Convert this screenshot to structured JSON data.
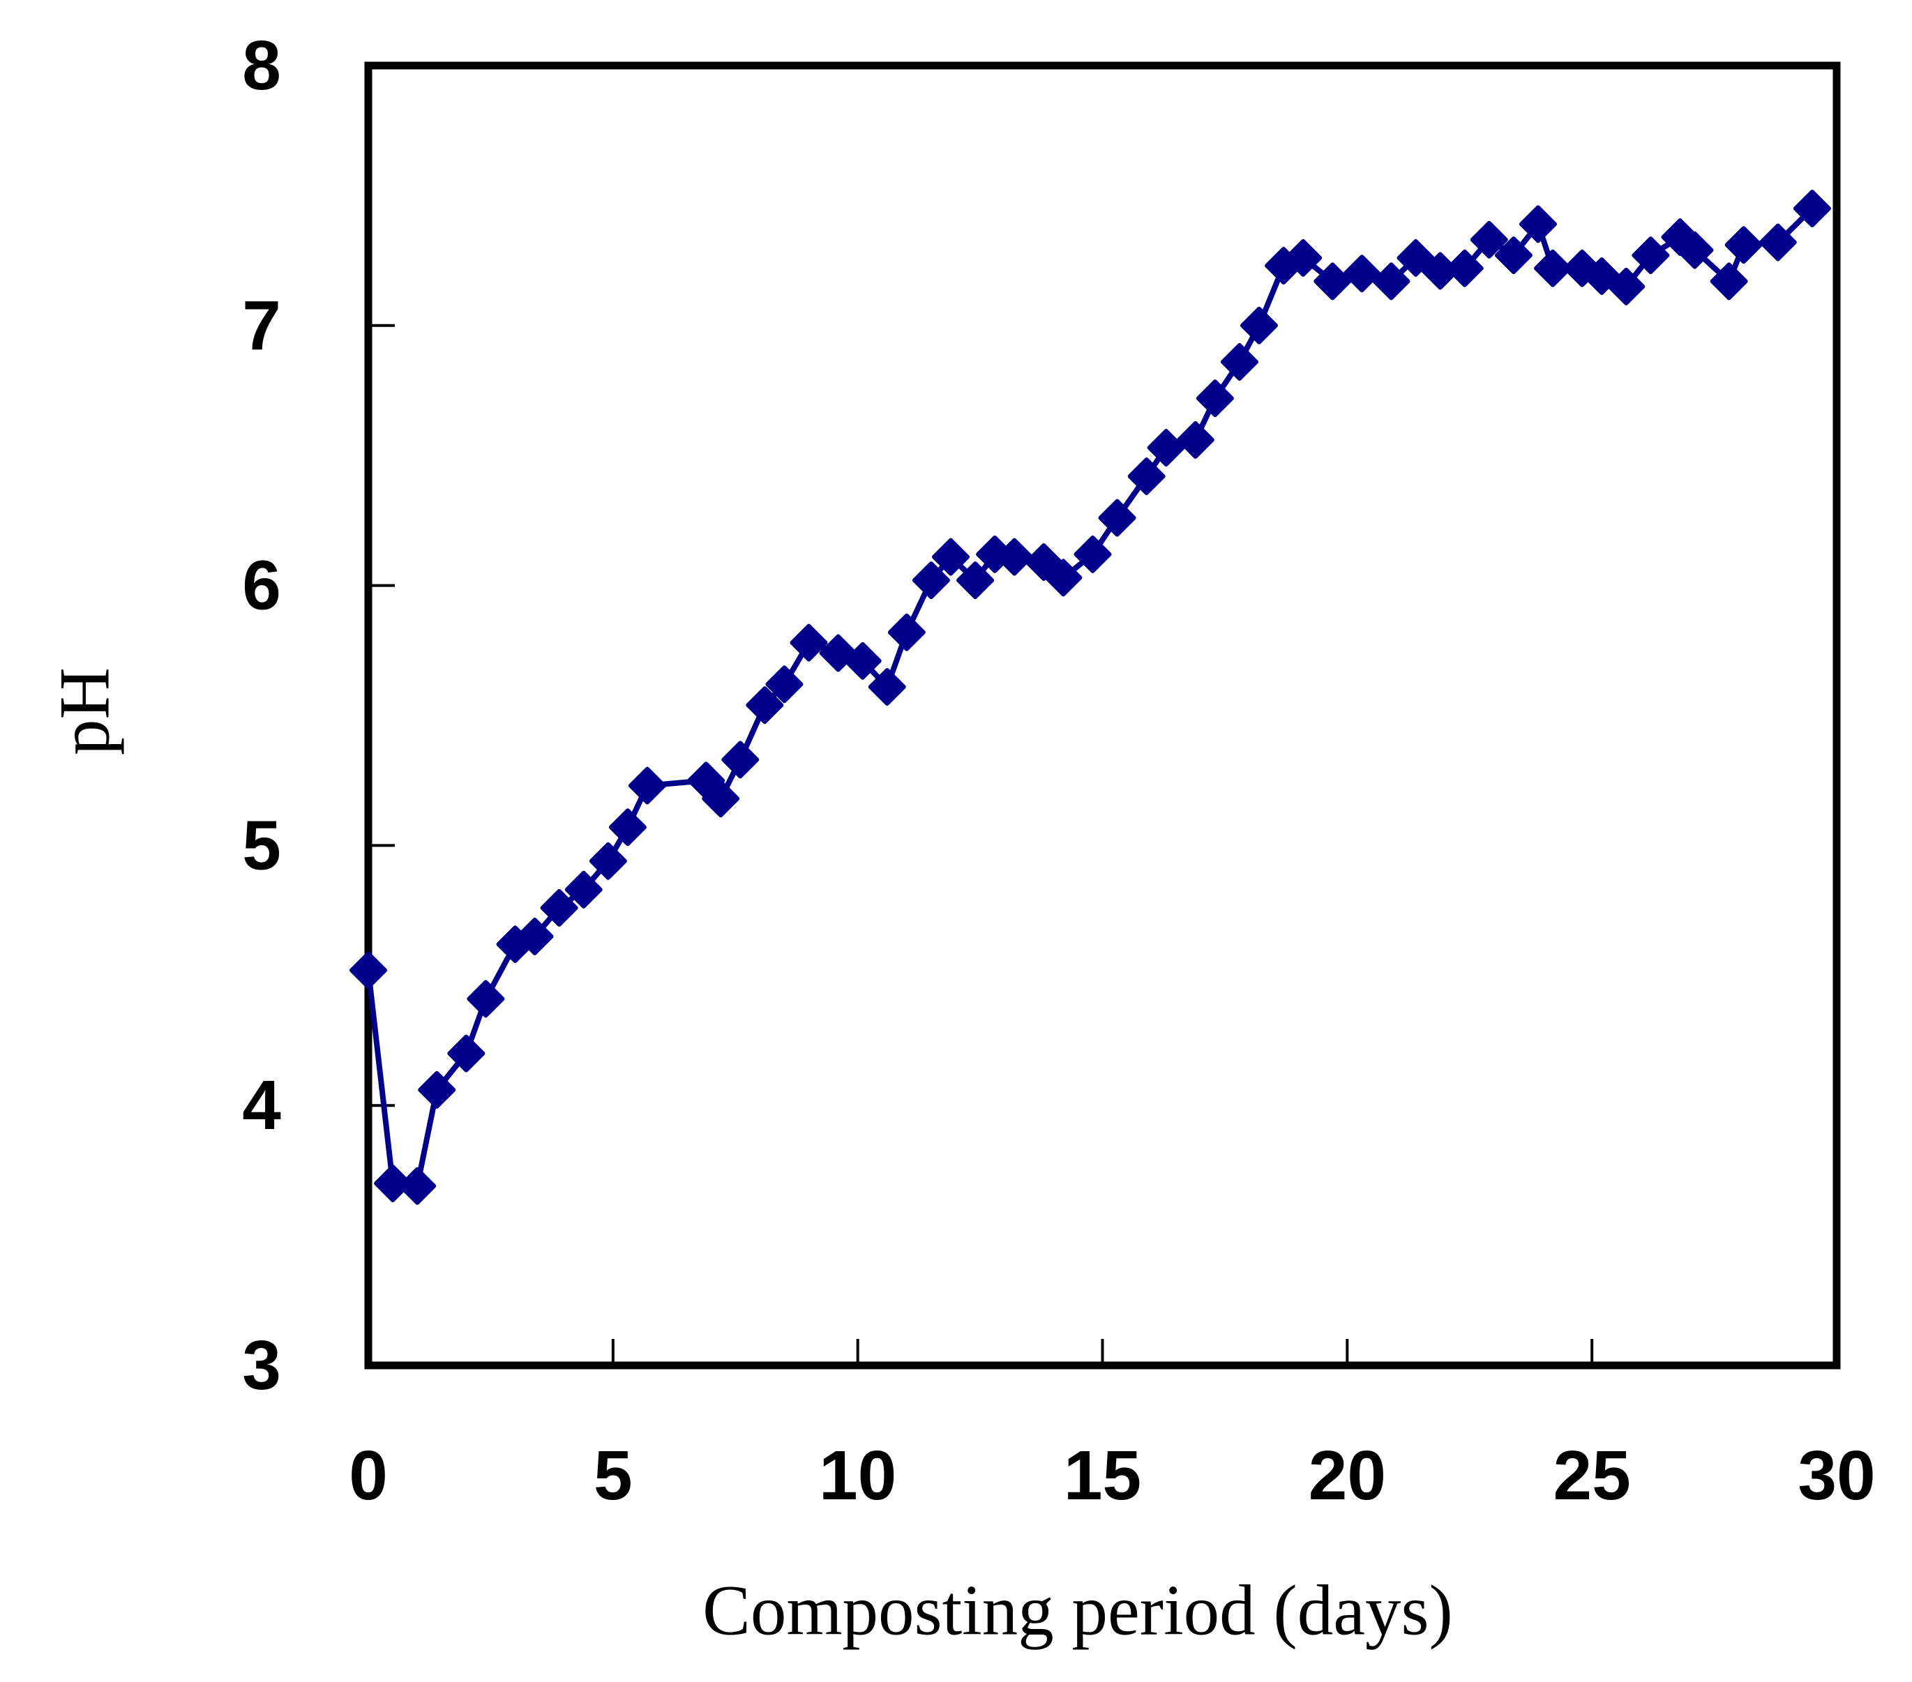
{
  "figure": {
    "background": "#ffffff",
    "axis_color": "#000000"
  },
  "chart_data": {
    "type": "line",
    "title": "",
    "xlabel": "Composting period (days)",
    "ylabel": "pH",
    "xlim": [
      0,
      30
    ],
    "ylim": [
      3,
      8
    ],
    "xticks": [
      0,
      5,
      10,
      15,
      20,
      25,
      30
    ],
    "yticks": [
      3,
      4,
      5,
      6,
      7,
      8
    ],
    "grid": false,
    "legend_position": "none",
    "series": [
      {
        "name": "pH",
        "color": "#00008B",
        "marker": "diamond",
        "points": [
          [
            0.0,
            4.52
          ],
          [
            0.5,
            3.7
          ],
          [
            1.0,
            3.69
          ],
          [
            1.4,
            4.06
          ],
          [
            2.0,
            4.2
          ],
          [
            2.4,
            4.41
          ],
          [
            3.0,
            4.62
          ],
          [
            3.4,
            4.65
          ],
          [
            3.9,
            4.76
          ],
          [
            4.4,
            4.83
          ],
          [
            4.9,
            4.94
          ],
          [
            5.3,
            5.07
          ],
          [
            5.7,
            5.23
          ],
          [
            6.9,
            5.25
          ],
          [
            7.2,
            5.18
          ],
          [
            7.6,
            5.33
          ],
          [
            8.1,
            5.54
          ],
          [
            8.5,
            5.62
          ],
          [
            9.0,
            5.78
          ],
          [
            9.6,
            5.74
          ],
          [
            10.1,
            5.71
          ],
          [
            10.6,
            5.61
          ],
          [
            11.0,
            5.82
          ],
          [
            11.5,
            6.02
          ],
          [
            11.9,
            6.11
          ],
          [
            12.4,
            6.02
          ],
          [
            12.8,
            6.12
          ],
          [
            13.2,
            6.11
          ],
          [
            13.8,
            6.09
          ],
          [
            14.2,
            6.03
          ],
          [
            14.8,
            6.12
          ],
          [
            15.3,
            6.26
          ],
          [
            15.9,
            6.42
          ],
          [
            16.3,
            6.53
          ],
          [
            16.9,
            6.56
          ],
          [
            17.3,
            6.72
          ],
          [
            17.8,
            6.86
          ],
          [
            18.2,
            7.0
          ],
          [
            18.7,
            7.23
          ],
          [
            19.1,
            7.26
          ],
          [
            19.7,
            7.17
          ],
          [
            20.3,
            7.2
          ],
          [
            20.9,
            7.17
          ],
          [
            21.4,
            7.26
          ],
          [
            21.9,
            7.21
          ],
          [
            22.4,
            7.22
          ],
          [
            22.9,
            7.33
          ],
          [
            23.4,
            7.27
          ],
          [
            23.9,
            7.39
          ],
          [
            24.2,
            7.22
          ],
          [
            24.8,
            7.22
          ],
          [
            25.2,
            7.19
          ],
          [
            25.7,
            7.15
          ],
          [
            26.2,
            7.27
          ],
          [
            26.8,
            7.34
          ],
          [
            27.1,
            7.29
          ],
          [
            27.8,
            7.17
          ],
          [
            28.1,
            7.31
          ],
          [
            28.8,
            7.32
          ],
          [
            29.5,
            7.45
          ]
        ]
      }
    ]
  }
}
